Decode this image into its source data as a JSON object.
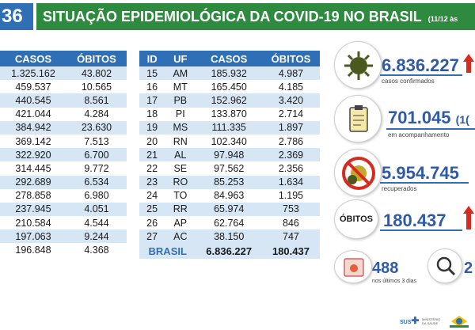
{
  "header": {
    "number_fragment": "36",
    "title": "SITUAÇÃO EPIDEMIOLÓGICA DA COVID-19 NO BRASIL",
    "subtitle": "(11/12 às"
  },
  "table_left": {
    "headers": [
      "CASOS",
      "ÓBITOS"
    ],
    "rows": [
      [
        "1.325.162",
        "43.802"
      ],
      [
        "459.537",
        "10.565"
      ],
      [
        "440.545",
        "8.561"
      ],
      [
        "421.044",
        "4.284"
      ],
      [
        "384.942",
        "23.630"
      ],
      [
        "369.142",
        "7.513"
      ],
      [
        "322.920",
        "6.700"
      ],
      [
        "314.445",
        "9.772"
      ],
      [
        "292.689",
        "6.534"
      ],
      [
        "278.858",
        "6.980"
      ],
      [
        "237.945",
        "4.051"
      ],
      [
        "210.584",
        "4.544"
      ],
      [
        "197.063",
        "9.244"
      ],
      [
        "196.848",
        "4.368"
      ]
    ]
  },
  "table_right": {
    "headers": [
      "ID",
      "UF",
      "CASOS",
      "ÓBITOS"
    ],
    "rows": [
      [
        "15",
        "AM",
        "185.932",
        "4.987"
      ],
      [
        "16",
        "MT",
        "165.450",
        "4.185"
      ],
      [
        "17",
        "PB",
        "152.962",
        "3.420"
      ],
      [
        "18",
        "PI",
        "133.870",
        "2.714"
      ],
      [
        "19",
        "MS",
        "111.335",
        "1.897"
      ],
      [
        "20",
        "RN",
        "102.340",
        "2.786"
      ],
      [
        "21",
        "AL",
        "97.948",
        "2.369"
      ],
      [
        "22",
        "SE",
        "97.562",
        "2.356"
      ],
      [
        "23",
        "RO",
        "85.253",
        "1.634"
      ],
      [
        "24",
        "TO",
        "84.963",
        "1.195"
      ],
      [
        "25",
        "RR",
        "65.974",
        "753"
      ],
      [
        "26",
        "AP",
        "62.764",
        "846"
      ],
      [
        "27",
        "AC",
        "38.150",
        "747"
      ]
    ],
    "total": {
      "label": "BRASIL",
      "casos": "6.836.227",
      "obitos": "180.437"
    }
  },
  "stats": {
    "confirmed": {
      "value": "6.836.227",
      "label": "casos confirmados",
      "icon": "virus-icon"
    },
    "monitoring": {
      "value": "701.045",
      "suffix": "(1(",
      "label": "em acompanhamento",
      "icon": "clipboard-icon"
    },
    "recovered": {
      "value": "5.954.745",
      "label": "recuperados",
      "icon": "no-virus-icon"
    },
    "deaths": {
      "badge": "ÓBITOS",
      "value": "180.437"
    },
    "recent": {
      "value": "488",
      "label": "nos últimos 3 dias",
      "icon": "calendar-icon"
    },
    "investigating": {
      "value": "2",
      "icon": "magnifier-icon"
    }
  },
  "footer": {
    "sus": "SUS",
    "ministry": "MINISTÉRIO DA SAÚDE"
  },
  "colors": {
    "green": "#2e8a3e",
    "blue": "#2f6fb6",
    "red": "#d62c1f"
  }
}
